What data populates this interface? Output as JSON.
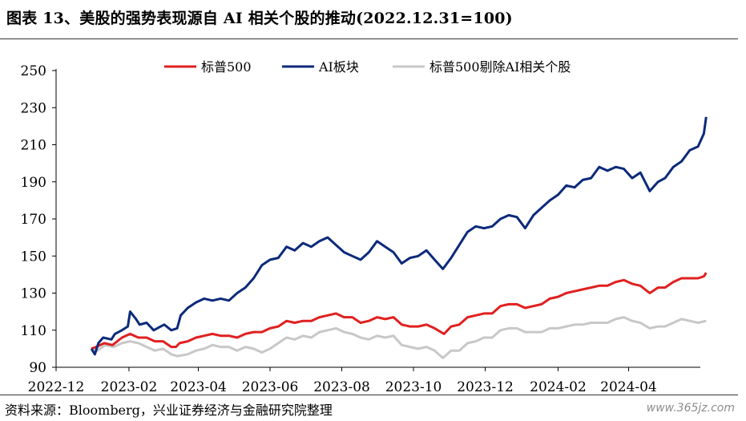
{
  "figure": {
    "title": "图表 13、美股的强势表现源自 AI 相关个股的推动(2022.12.31=100)",
    "source": "资料来源：Bloomberg，兴业证券经济与金融研究院整理",
    "watermark": "www.365jz.com"
  },
  "chart_data": {
    "type": "line",
    "title": "",
    "xlabel": "",
    "ylabel": "",
    "ylim": [
      90,
      250
    ],
    "xlim": [
      "2022-12-01",
      "2024-06-01"
    ],
    "yticks": [
      90,
      110,
      130,
      150,
      170,
      190,
      210,
      230,
      250
    ],
    "xticks": [
      "2022-12",
      "2023-02",
      "2023-04",
      "2023-06",
      "2023-08",
      "2023-10",
      "2023-12",
      "2024-02",
      "2024-04"
    ],
    "grid": false,
    "legend_position": "top",
    "series": [
      {
        "name": "标普500",
        "color": "#e02020",
        "points": [
          [
            "2022-12-31",
            100
          ],
          [
            "2023-01-04",
            101
          ],
          [
            "2023-01-11",
            103
          ],
          [
            "2023-01-18",
            102
          ],
          [
            "2023-01-26",
            106
          ],
          [
            "2023-02-02",
            108
          ],
          [
            "2023-02-09",
            106
          ],
          [
            "2023-02-16",
            106
          ],
          [
            "2023-02-23",
            104
          ],
          [
            "2023-03-02",
            104
          ],
          [
            "2023-03-09",
            101
          ],
          [
            "2023-03-13",
            101
          ],
          [
            "2023-03-16",
            103
          ],
          [
            "2023-03-23",
            104
          ],
          [
            "2023-03-30",
            106
          ],
          [
            "2023-04-06",
            107
          ],
          [
            "2023-04-13",
            108
          ],
          [
            "2023-04-20",
            107
          ],
          [
            "2023-04-27",
            107
          ],
          [
            "2023-05-04",
            106
          ],
          [
            "2023-05-11",
            108
          ],
          [
            "2023-05-18",
            109
          ],
          [
            "2023-05-25",
            109
          ],
          [
            "2023-06-01",
            111
          ],
          [
            "2023-06-08",
            112
          ],
          [
            "2023-06-15",
            115
          ],
          [
            "2023-06-22",
            114
          ],
          [
            "2023-06-29",
            115
          ],
          [
            "2023-07-06",
            115
          ],
          [
            "2023-07-13",
            117
          ],
          [
            "2023-07-20",
            118
          ],
          [
            "2023-07-27",
            119
          ],
          [
            "2023-08-03",
            117
          ],
          [
            "2023-08-10",
            117
          ],
          [
            "2023-08-17",
            114
          ],
          [
            "2023-08-24",
            115
          ],
          [
            "2023-08-31",
            117
          ],
          [
            "2023-09-07",
            116
          ],
          [
            "2023-09-14",
            117
          ],
          [
            "2023-09-21",
            113
          ],
          [
            "2023-09-28",
            112
          ],
          [
            "2023-10-05",
            112
          ],
          [
            "2023-10-12",
            113
          ],
          [
            "2023-10-19",
            111
          ],
          [
            "2023-10-27",
            108
          ],
          [
            "2023-11-02",
            112
          ],
          [
            "2023-11-09",
            113
          ],
          [
            "2023-11-16",
            117
          ],
          [
            "2023-11-23",
            118
          ],
          [
            "2023-11-30",
            119
          ],
          [
            "2023-12-07",
            119
          ],
          [
            "2023-12-14",
            123
          ],
          [
            "2023-12-21",
            124
          ],
          [
            "2023-12-28",
            124
          ],
          [
            "2024-01-04",
            122
          ],
          [
            "2024-01-11",
            123
          ],
          [
            "2024-01-18",
            124
          ],
          [
            "2024-01-25",
            127
          ],
          [
            "2024-02-01",
            128
          ],
          [
            "2024-02-08",
            130
          ],
          [
            "2024-02-15",
            131
          ],
          [
            "2024-02-22",
            132
          ],
          [
            "2024-02-29",
            133
          ],
          [
            "2024-03-07",
            134
          ],
          [
            "2024-03-14",
            134
          ],
          [
            "2024-03-21",
            136
          ],
          [
            "2024-03-28",
            137
          ],
          [
            "2024-04-04",
            135
          ],
          [
            "2024-04-11",
            134
          ],
          [
            "2024-04-19",
            130
          ],
          [
            "2024-04-26",
            133
          ],
          [
            "2024-05-02",
            133
          ],
          [
            "2024-05-09",
            136
          ],
          [
            "2024-05-16",
            138
          ],
          [
            "2024-05-23",
            138
          ],
          [
            "2024-05-30",
            138
          ],
          [
            "2024-06-04",
            139
          ],
          [
            "2024-06-06",
            141
          ]
        ]
      },
      {
        "name": "AI板块",
        "color": "#0c2a7a",
        "points": [
          [
            "2022-12-31",
            100
          ],
          [
            "2023-01-03",
            97
          ],
          [
            "2023-01-06",
            103
          ],
          [
            "2023-01-10",
            106
          ],
          [
            "2023-01-17",
            105
          ],
          [
            "2023-01-20",
            108
          ],
          [
            "2023-01-26",
            110
          ],
          [
            "2023-01-31",
            112
          ],
          [
            "2023-02-02",
            120
          ],
          [
            "2023-02-07",
            116
          ],
          [
            "2023-02-10",
            113
          ],
          [
            "2023-02-16",
            114
          ],
          [
            "2023-02-22",
            110
          ],
          [
            "2023-02-28",
            112
          ],
          [
            "2023-03-03",
            113
          ],
          [
            "2023-03-09",
            110
          ],
          [
            "2023-03-14",
            111
          ],
          [
            "2023-03-17",
            118
          ],
          [
            "2023-03-23",
            122
          ],
          [
            "2023-03-30",
            125
          ],
          [
            "2023-04-06",
            127
          ],
          [
            "2023-04-13",
            126
          ],
          [
            "2023-04-20",
            127
          ],
          [
            "2023-04-27",
            126
          ],
          [
            "2023-05-04",
            130
          ],
          [
            "2023-05-11",
            133
          ],
          [
            "2023-05-18",
            138
          ],
          [
            "2023-05-25",
            145
          ],
          [
            "2023-06-01",
            148
          ],
          [
            "2023-06-08",
            149
          ],
          [
            "2023-06-15",
            155
          ],
          [
            "2023-06-22",
            153
          ],
          [
            "2023-06-29",
            157
          ],
          [
            "2023-07-06",
            155
          ],
          [
            "2023-07-13",
            158
          ],
          [
            "2023-07-20",
            160
          ],
          [
            "2023-07-27",
            156
          ],
          [
            "2023-08-03",
            152
          ],
          [
            "2023-08-10",
            150
          ],
          [
            "2023-08-17",
            148
          ],
          [
            "2023-08-24",
            152
          ],
          [
            "2023-08-31",
            158
          ],
          [
            "2023-09-07",
            155
          ],
          [
            "2023-09-14",
            152
          ],
          [
            "2023-09-21",
            146
          ],
          [
            "2023-09-28",
            149
          ],
          [
            "2023-10-05",
            150
          ],
          [
            "2023-10-12",
            153
          ],
          [
            "2023-10-19",
            148
          ],
          [
            "2023-10-26",
            143
          ],
          [
            "2023-11-02",
            149
          ],
          [
            "2023-11-09",
            156
          ],
          [
            "2023-11-16",
            163
          ],
          [
            "2023-11-23",
            166
          ],
          [
            "2023-11-30",
            165
          ],
          [
            "2023-12-07",
            166
          ],
          [
            "2023-12-14",
            170
          ],
          [
            "2023-12-21",
            172
          ],
          [
            "2023-12-28",
            171
          ],
          [
            "2024-01-04",
            165
          ],
          [
            "2024-01-11",
            172
          ],
          [
            "2024-01-18",
            176
          ],
          [
            "2024-01-25",
            180
          ],
          [
            "2024-02-01",
            183
          ],
          [
            "2024-02-08",
            188
          ],
          [
            "2024-02-15",
            187
          ],
          [
            "2024-02-22",
            191
          ],
          [
            "2024-02-29",
            192
          ],
          [
            "2024-03-07",
            198
          ],
          [
            "2024-03-14",
            196
          ],
          [
            "2024-03-21",
            198
          ],
          [
            "2024-03-28",
            197
          ],
          [
            "2024-04-04",
            192
          ],
          [
            "2024-04-11",
            195
          ],
          [
            "2024-04-19",
            185
          ],
          [
            "2024-04-26",
            190
          ],
          [
            "2024-05-02",
            192
          ],
          [
            "2024-05-09",
            198
          ],
          [
            "2024-05-16",
            201
          ],
          [
            "2024-05-23",
            207
          ],
          [
            "2024-05-30",
            209
          ],
          [
            "2024-06-04",
            216
          ],
          [
            "2024-06-06",
            225
          ]
        ]
      },
      {
        "name": "标普500剔除AI相关个股",
        "color": "#c8c8c8",
        "points": [
          [
            "2022-12-31",
            100
          ],
          [
            "2023-01-05",
            99
          ],
          [
            "2023-01-12",
            102
          ],
          [
            "2023-01-19",
            101
          ],
          [
            "2023-01-26",
            103
          ],
          [
            "2023-02-02",
            104
          ],
          [
            "2023-02-09",
            103
          ],
          [
            "2023-02-16",
            101
          ],
          [
            "2023-02-23",
            99
          ],
          [
            "2023-03-02",
            100
          ],
          [
            "2023-03-09",
            97
          ],
          [
            "2023-03-14",
            96
          ],
          [
            "2023-03-23",
            97
          ],
          [
            "2023-03-30",
            99
          ],
          [
            "2023-04-06",
            100
          ],
          [
            "2023-04-13",
            102
          ],
          [
            "2023-04-20",
            101
          ],
          [
            "2023-04-27",
            101
          ],
          [
            "2023-05-04",
            99
          ],
          [
            "2023-05-11",
            101
          ],
          [
            "2023-05-18",
            100
          ],
          [
            "2023-05-25",
            98
          ],
          [
            "2023-06-01",
            100
          ],
          [
            "2023-06-08",
            103
          ],
          [
            "2023-06-15",
            106
          ],
          [
            "2023-06-22",
            105
          ],
          [
            "2023-06-29",
            107
          ],
          [
            "2023-07-06",
            106
          ],
          [
            "2023-07-13",
            109
          ],
          [
            "2023-07-20",
            110
          ],
          [
            "2023-07-27",
            111
          ],
          [
            "2023-08-03",
            109
          ],
          [
            "2023-08-10",
            108
          ],
          [
            "2023-08-17",
            106
          ],
          [
            "2023-08-24",
            105
          ],
          [
            "2023-08-31",
            107
          ],
          [
            "2023-09-07",
            106
          ],
          [
            "2023-09-14",
            107
          ],
          [
            "2023-09-21",
            102
          ],
          [
            "2023-09-28",
            101
          ],
          [
            "2023-10-05",
            100
          ],
          [
            "2023-10-12",
            101
          ],
          [
            "2023-10-19",
            99
          ],
          [
            "2023-10-26",
            95
          ],
          [
            "2023-11-02",
            99
          ],
          [
            "2023-11-09",
            99
          ],
          [
            "2023-11-16",
            103
          ],
          [
            "2023-11-23",
            104
          ],
          [
            "2023-11-30",
            106
          ],
          [
            "2023-12-07",
            106
          ],
          [
            "2023-12-14",
            110
          ],
          [
            "2023-12-21",
            111
          ],
          [
            "2023-12-28",
            111
          ],
          [
            "2024-01-04",
            109
          ],
          [
            "2024-01-11",
            109
          ],
          [
            "2024-01-18",
            109
          ],
          [
            "2024-01-25",
            111
          ],
          [
            "2024-02-01",
            111
          ],
          [
            "2024-02-08",
            112
          ],
          [
            "2024-02-15",
            113
          ],
          [
            "2024-02-22",
            113
          ],
          [
            "2024-02-29",
            114
          ],
          [
            "2024-03-07",
            114
          ],
          [
            "2024-03-14",
            114
          ],
          [
            "2024-03-21",
            116
          ],
          [
            "2024-03-28",
            117
          ],
          [
            "2024-04-04",
            115
          ],
          [
            "2024-04-11",
            114
          ],
          [
            "2024-04-19",
            111
          ],
          [
            "2024-04-26",
            112
          ],
          [
            "2024-05-02",
            112
          ],
          [
            "2024-05-09",
            114
          ],
          [
            "2024-05-16",
            116
          ],
          [
            "2024-05-23",
            115
          ],
          [
            "2024-05-30",
            114
          ],
          [
            "2024-06-06",
            115
          ]
        ]
      }
    ]
  }
}
